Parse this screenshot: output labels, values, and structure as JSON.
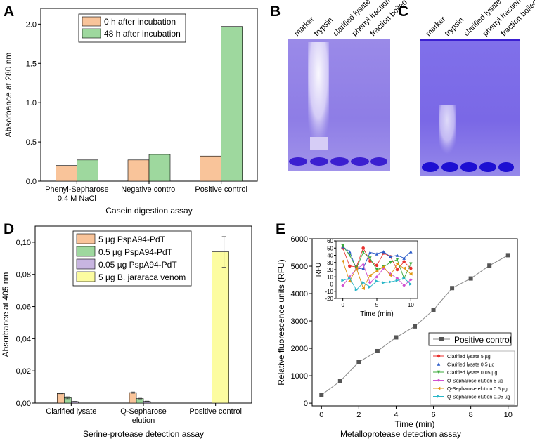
{
  "panels": {
    "A": "A",
    "B": "B",
    "C": "C",
    "D": "D",
    "E": "E"
  },
  "gel_lanes": [
    "marker",
    "trypsin",
    "clarified lysate",
    "phenyl fraction",
    "fraction boiled"
  ],
  "colors": {
    "orange": "#f9c49a",
    "green": "#9ed89e",
    "purple": "#c8b5e0",
    "yellow": "#fcfca0",
    "gel_dark": "#3b1fd0",
    "gel_mid": "#8a7ae8",
    "gel_light": "#b7adf0"
  },
  "chart_data": [
    {
      "id": "A",
      "type": "bar",
      "title": "",
      "xlabel": "Casein digestion assay",
      "ylabel": "Absorbance at 280 nm",
      "categories": [
        "Phenyl-Sepharose 0.4 M NaCl",
        "Negative control",
        "Positive control"
      ],
      "category_lines": [
        [
          "Phenyl-Sepharose",
          "0.4 M NaCl"
        ],
        [
          "Negative control"
        ],
        [
          "Positive control"
        ]
      ],
      "ylim": [
        0,
        2.2
      ],
      "yticks": [
        "0.0",
        "0.5",
        "1.0",
        "1.5",
        "2.0"
      ],
      "ytick_values": [
        0,
        0.5,
        1.0,
        1.5,
        2.0
      ],
      "series": [
        {
          "name": "0 h after incubation",
          "values": [
            0.2,
            0.27,
            0.32
          ],
          "color": "#f9c49a"
        },
        {
          "name": "48 h after incubation",
          "values": [
            0.27,
            0.34,
            1.97
          ],
          "color": "#9ed89e"
        }
      ]
    },
    {
      "id": "D",
      "type": "bar",
      "title": "",
      "xlabel": "Serine-protease detection assay",
      "ylabel": "Absorbance at 405 nm",
      "categories": [
        "Clarified lysate",
        "Q-Sepharose elution",
        "Positive control"
      ],
      "category_lines": [
        [
          "Clarified lysate"
        ],
        [
          "Q-Sepharose",
          "elution"
        ],
        [
          "Positive control"
        ]
      ],
      "ylim": [
        0,
        0.11
      ],
      "yticks": [
        "0,00",
        "0,02",
        "0,04",
        "0,06",
        "0,08",
        "0,10"
      ],
      "ytick_values": [
        0,
        0.02,
        0.04,
        0.06,
        0.08,
        0.1
      ],
      "series": [
        {
          "name": "5 µg PspA94-PdT",
          "values": [
            0.006,
            0.0065,
            0
          ],
          "errors": [
            0.0002,
            0.0004,
            0
          ],
          "color": "#f9c49a"
        },
        {
          "name": "0.5 µg PspA94-PdT",
          "values": [
            0.0033,
            0.0028,
            0
          ],
          "errors": [
            0.0006,
            0.0002,
            0
          ],
          "color": "#9ed89e"
        },
        {
          "name": "0.05 µg PspA94-PdT",
          "values": [
            0.0009,
            0.001,
            0
          ],
          "errors": [
            0.0002,
            0.0002,
            0
          ],
          "color": "#c8b5e0"
        },
        {
          "name": "5 µg B. jararaca venom",
          "values": [
            0,
            0,
            0.094
          ],
          "errors": [
            0,
            0,
            0.0095
          ],
          "color": "#fcfca0"
        }
      ]
    },
    {
      "id": "E",
      "type": "line",
      "title": "Metalloprotease detection assay",
      "xlabel": "Time (min)",
      "ylabel": "Relative fluorescence units (RFU)",
      "xlim": [
        -0.5,
        10.5
      ],
      "ylim": [
        -100,
        6000
      ],
      "xticks": [
        "0",
        "2",
        "4",
        "6",
        "8",
        "10"
      ],
      "xtick_values": [
        0,
        2,
        4,
        6,
        8,
        10
      ],
      "yticks": [
        "0",
        "1000",
        "2000",
        "3000",
        "4000",
        "5000",
        "6000"
      ],
      "ytick_values": [
        0,
        1000,
        2000,
        3000,
        4000,
        5000,
        6000
      ],
      "main_legend": "Positive control",
      "series": [
        {
          "name": "Positive control",
          "color": "#555555",
          "marker": "square",
          "x": [
            0,
            1,
            2,
            3,
            4,
            5,
            6,
            7,
            8,
            9,
            10
          ],
          "y": [
            300,
            800,
            1500,
            1900,
            2400,
            2800,
            3400,
            4200,
            4550,
            5020,
            5400
          ]
        }
      ],
      "inset": {
        "xlabel": "Time (min)",
        "ylabel": "RFU",
        "xlim": [
          -1,
          11
        ],
        "ylim": [
          -20,
          60
        ],
        "xticks": [
          "0",
          "5",
          "10"
        ],
        "xtick_values": [
          0,
          5,
          10
        ],
        "yticks": [
          "-20",
          "-10",
          "0",
          "10",
          "20",
          "30",
          "40",
          "50",
          "60"
        ],
        "ytick_values": [
          -20,
          -10,
          0,
          10,
          20,
          30,
          40,
          50,
          60
        ],
        "series": [
          {
            "name": "Clarified lysate 5 µg",
            "color": "#e8322f",
            "marker": "circle",
            "x": [
              0,
              1,
              2,
              3,
              4,
              5,
              6,
              7,
              8,
              9,
              10
            ],
            "y": [
              50,
              25,
              24,
              50,
              32,
              26,
              43,
              38,
              20,
              31,
              22
            ]
          },
          {
            "name": "Clarified lysate 0.5 µg",
            "color": "#2a5bc8",
            "marker": "triangle-up",
            "x": [
              0,
              1,
              2,
              3,
              4,
              5,
              6,
              7,
              8,
              9,
              10
            ],
            "y": [
              52,
              45,
              21,
              22,
              44,
              42,
              45,
              38,
              40,
              36,
              45
            ]
          },
          {
            "name": "Clarified lysate 0.05 µg",
            "color": "#3aa93a",
            "marker": "triangle-down",
            "x": [
              0,
              1,
              2,
              3,
              4,
              5,
              6,
              7,
              8,
              9,
              10
            ],
            "y": [
              53,
              40,
              22,
              44,
              36,
              20,
              24,
              30,
              34,
              8,
              28
            ]
          },
          {
            "name": "Q-Sepharose elution 5 µg",
            "color": "#d050d0",
            "marker": "diamond",
            "x": [
              0,
              1,
              2,
              3,
              4,
              5,
              6,
              7,
              8,
              9,
              10
            ],
            "y": [
              -2,
              10,
              21,
              27,
              2,
              10,
              22,
              14,
              8,
              -2,
              6
            ]
          },
          {
            "name": "Q-Sepharose elution 0.5 µg",
            "color": "#e0960f",
            "marker": "triangle-left",
            "x": [
              0,
              1,
              2,
              3,
              4,
              5,
              6,
              7,
              8,
              9,
              10
            ],
            "y": [
              32,
              4,
              22,
              -6,
              12,
              18,
              24,
              12,
              28,
              22,
              14
            ]
          },
          {
            "name": "Q-Sepharose elution 0.05 µg",
            "color": "#29b6c8",
            "marker": "triangle-right",
            "x": [
              0,
              1,
              2,
              3,
              4,
              5,
              6,
              7,
              8,
              9,
              10
            ],
            "y": [
              5,
              8,
              -8,
              2,
              -4,
              4,
              2,
              3,
              5,
              8,
              0
            ]
          }
        ]
      }
    }
  ]
}
